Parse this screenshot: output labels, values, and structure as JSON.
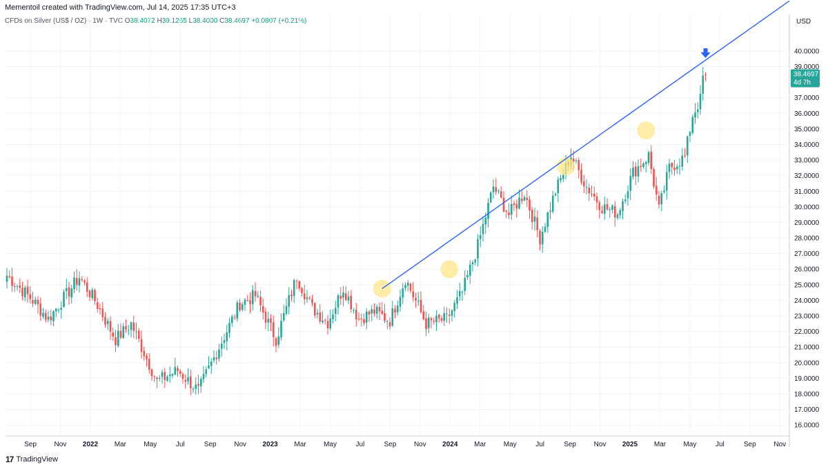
{
  "header": {
    "created_by": "Mementoil created with TradingView.com, Jul 14, 2025 17:35 UTC+3"
  },
  "legend": {
    "symbol": "CFDs on Silver (US$ / OZ) · 1W · TVC",
    "open_label": "O",
    "open": "38.4072",
    "high_label": "H",
    "high": "39.1265",
    "low_label": "L",
    "low": "38.4000",
    "close_label": "C",
    "close": "38.4697",
    "change": "+0.0807 (+0.21%)"
  },
  "price_axis_unit": "USD",
  "price_tag": {
    "price": "38.4697",
    "countdown": "4d 7h",
    "color": "#26a69a"
  },
  "footer": {
    "brand": "TradingView"
  },
  "colors": {
    "up": "#26a69a",
    "down": "#ef5350",
    "trendline": "#2962ff",
    "highlight": "#fde68a",
    "arrow": "#2962ff"
  },
  "chart_data": {
    "type": "candlestick",
    "timeframe": "1W",
    "ylim": [
      15.3,
      41.5
    ],
    "y_ticks": [
      "40.0000",
      "39.0000",
      "37.0000",
      "36.0000",
      "35.0000",
      "34.0000",
      "33.0000",
      "32.0000",
      "31.0000",
      "30.0000",
      "29.0000",
      "28.0000",
      "27.0000",
      "26.0000",
      "25.0000",
      "24.0000",
      "23.0000",
      "22.0000",
      "21.0000",
      "20.0000",
      "19.0000",
      "18.0000",
      "17.0000",
      "16.0000"
    ],
    "x_ticks": [
      {
        "label": "Sep",
        "bold": false
      },
      {
        "label": "Nov",
        "bold": false
      },
      {
        "label": "2022",
        "bold": true
      },
      {
        "label": "Mar",
        "bold": false
      },
      {
        "label": "May",
        "bold": false
      },
      {
        "label": "Jul",
        "bold": false
      },
      {
        "label": "Sep",
        "bold": false
      },
      {
        "label": "Nov",
        "bold": false
      },
      {
        "label": "2023",
        "bold": true
      },
      {
        "label": "Mar",
        "bold": false
      },
      {
        "label": "May",
        "bold": false
      },
      {
        "label": "Jul",
        "bold": false
      },
      {
        "label": "Sep",
        "bold": false
      },
      {
        "label": "Nov",
        "bold": false
      },
      {
        "label": "2024",
        "bold": true
      },
      {
        "label": "Mar",
        "bold": false
      },
      {
        "label": "May",
        "bold": false
      },
      {
        "label": "Jul",
        "bold": false
      },
      {
        "label": "Sep",
        "bold": false
      },
      {
        "label": "Nov",
        "bold": false
      },
      {
        "label": "2025",
        "bold": true
      },
      {
        "label": "Mar",
        "bold": false
      },
      {
        "label": "May",
        "bold": false
      },
      {
        "label": "Jul",
        "bold": false
      },
      {
        "label": "Sep",
        "bold": false
      },
      {
        "label": "Nov",
        "bold": false
      }
    ],
    "anchors": [
      {
        "price": 25.6,
        "index": 0
      },
      {
        "price": 24.0,
        "index": 10
      },
      {
        "price": 22.8,
        "index": 16
      },
      {
        "price": 25.5,
        "index": 28
      },
      {
        "price": 24.0,
        "index": 34
      },
      {
        "price": 21.5,
        "index": 42
      },
      {
        "price": 22.5,
        "index": 48
      },
      {
        "price": 18.8,
        "index": 58
      },
      {
        "price": 19.5,
        "index": 66
      },
      {
        "price": 18.2,
        "index": 74
      },
      {
        "price": 21.0,
        "index": 82
      },
      {
        "price": 23.8,
        "index": 90
      },
      {
        "price": 24.3,
        "index": 96
      },
      {
        "price": 21.5,
        "index": 104
      },
      {
        "price": 25.5,
        "index": 112
      },
      {
        "price": 23.5,
        "index": 118
      },
      {
        "price": 22.6,
        "index": 124
      },
      {
        "price": 24.8,
        "index": 130
      },
      {
        "price": 22.8,
        "index": 136
      },
      {
        "price": 23.3,
        "index": 142
      },
      {
        "price": 22.7,
        "index": 148
      },
      {
        "price": 25.4,
        "index": 154
      },
      {
        "price": 22.5,
        "index": 162
      },
      {
        "price": 22.8,
        "index": 170
      },
      {
        "price": 24.5,
        "index": 176
      },
      {
        "price": 27.5,
        "index": 182
      },
      {
        "price": 31.3,
        "index": 188
      },
      {
        "price": 29.5,
        "index": 194
      },
      {
        "price": 30.9,
        "index": 200
      },
      {
        "price": 28.0,
        "index": 206
      },
      {
        "price": 31.0,
        "index": 212
      },
      {
        "price": 33.3,
        "index": 218
      },
      {
        "price": 31.3,
        "index": 224
      },
      {
        "price": 30.0,
        "index": 230
      },
      {
        "price": 29.6,
        "index": 236
      },
      {
        "price": 32.2,
        "index": 242
      },
      {
        "price": 33.3,
        "index": 248
      },
      {
        "price": 29.8,
        "index": 252
      },
      {
        "price": 32.5,
        "index": 256
      },
      {
        "price": 33.2,
        "index": 262
      },
      {
        "price": 35.9,
        "index": 265
      },
      {
        "price": 37.2,
        "index": 269
      },
      {
        "price": 38.47,
        "index": 270
      }
    ],
    "trendline": {
      "start": {
        "index": 145,
        "price": 24.75
      },
      "end": {
        "index": 275,
        "price": 40.0
      },
      "extend_right": true
    },
    "highlights": [
      {
        "index": 145,
        "price": 24.75
      },
      {
        "index": 171,
        "price": 26.0
      },
      {
        "index": 216,
        "price": 32.6
      },
      {
        "index": 247,
        "price": 34.9
      }
    ],
    "marker": {
      "type": "arrow-down",
      "index": 270,
      "price": 39.55
    }
  }
}
